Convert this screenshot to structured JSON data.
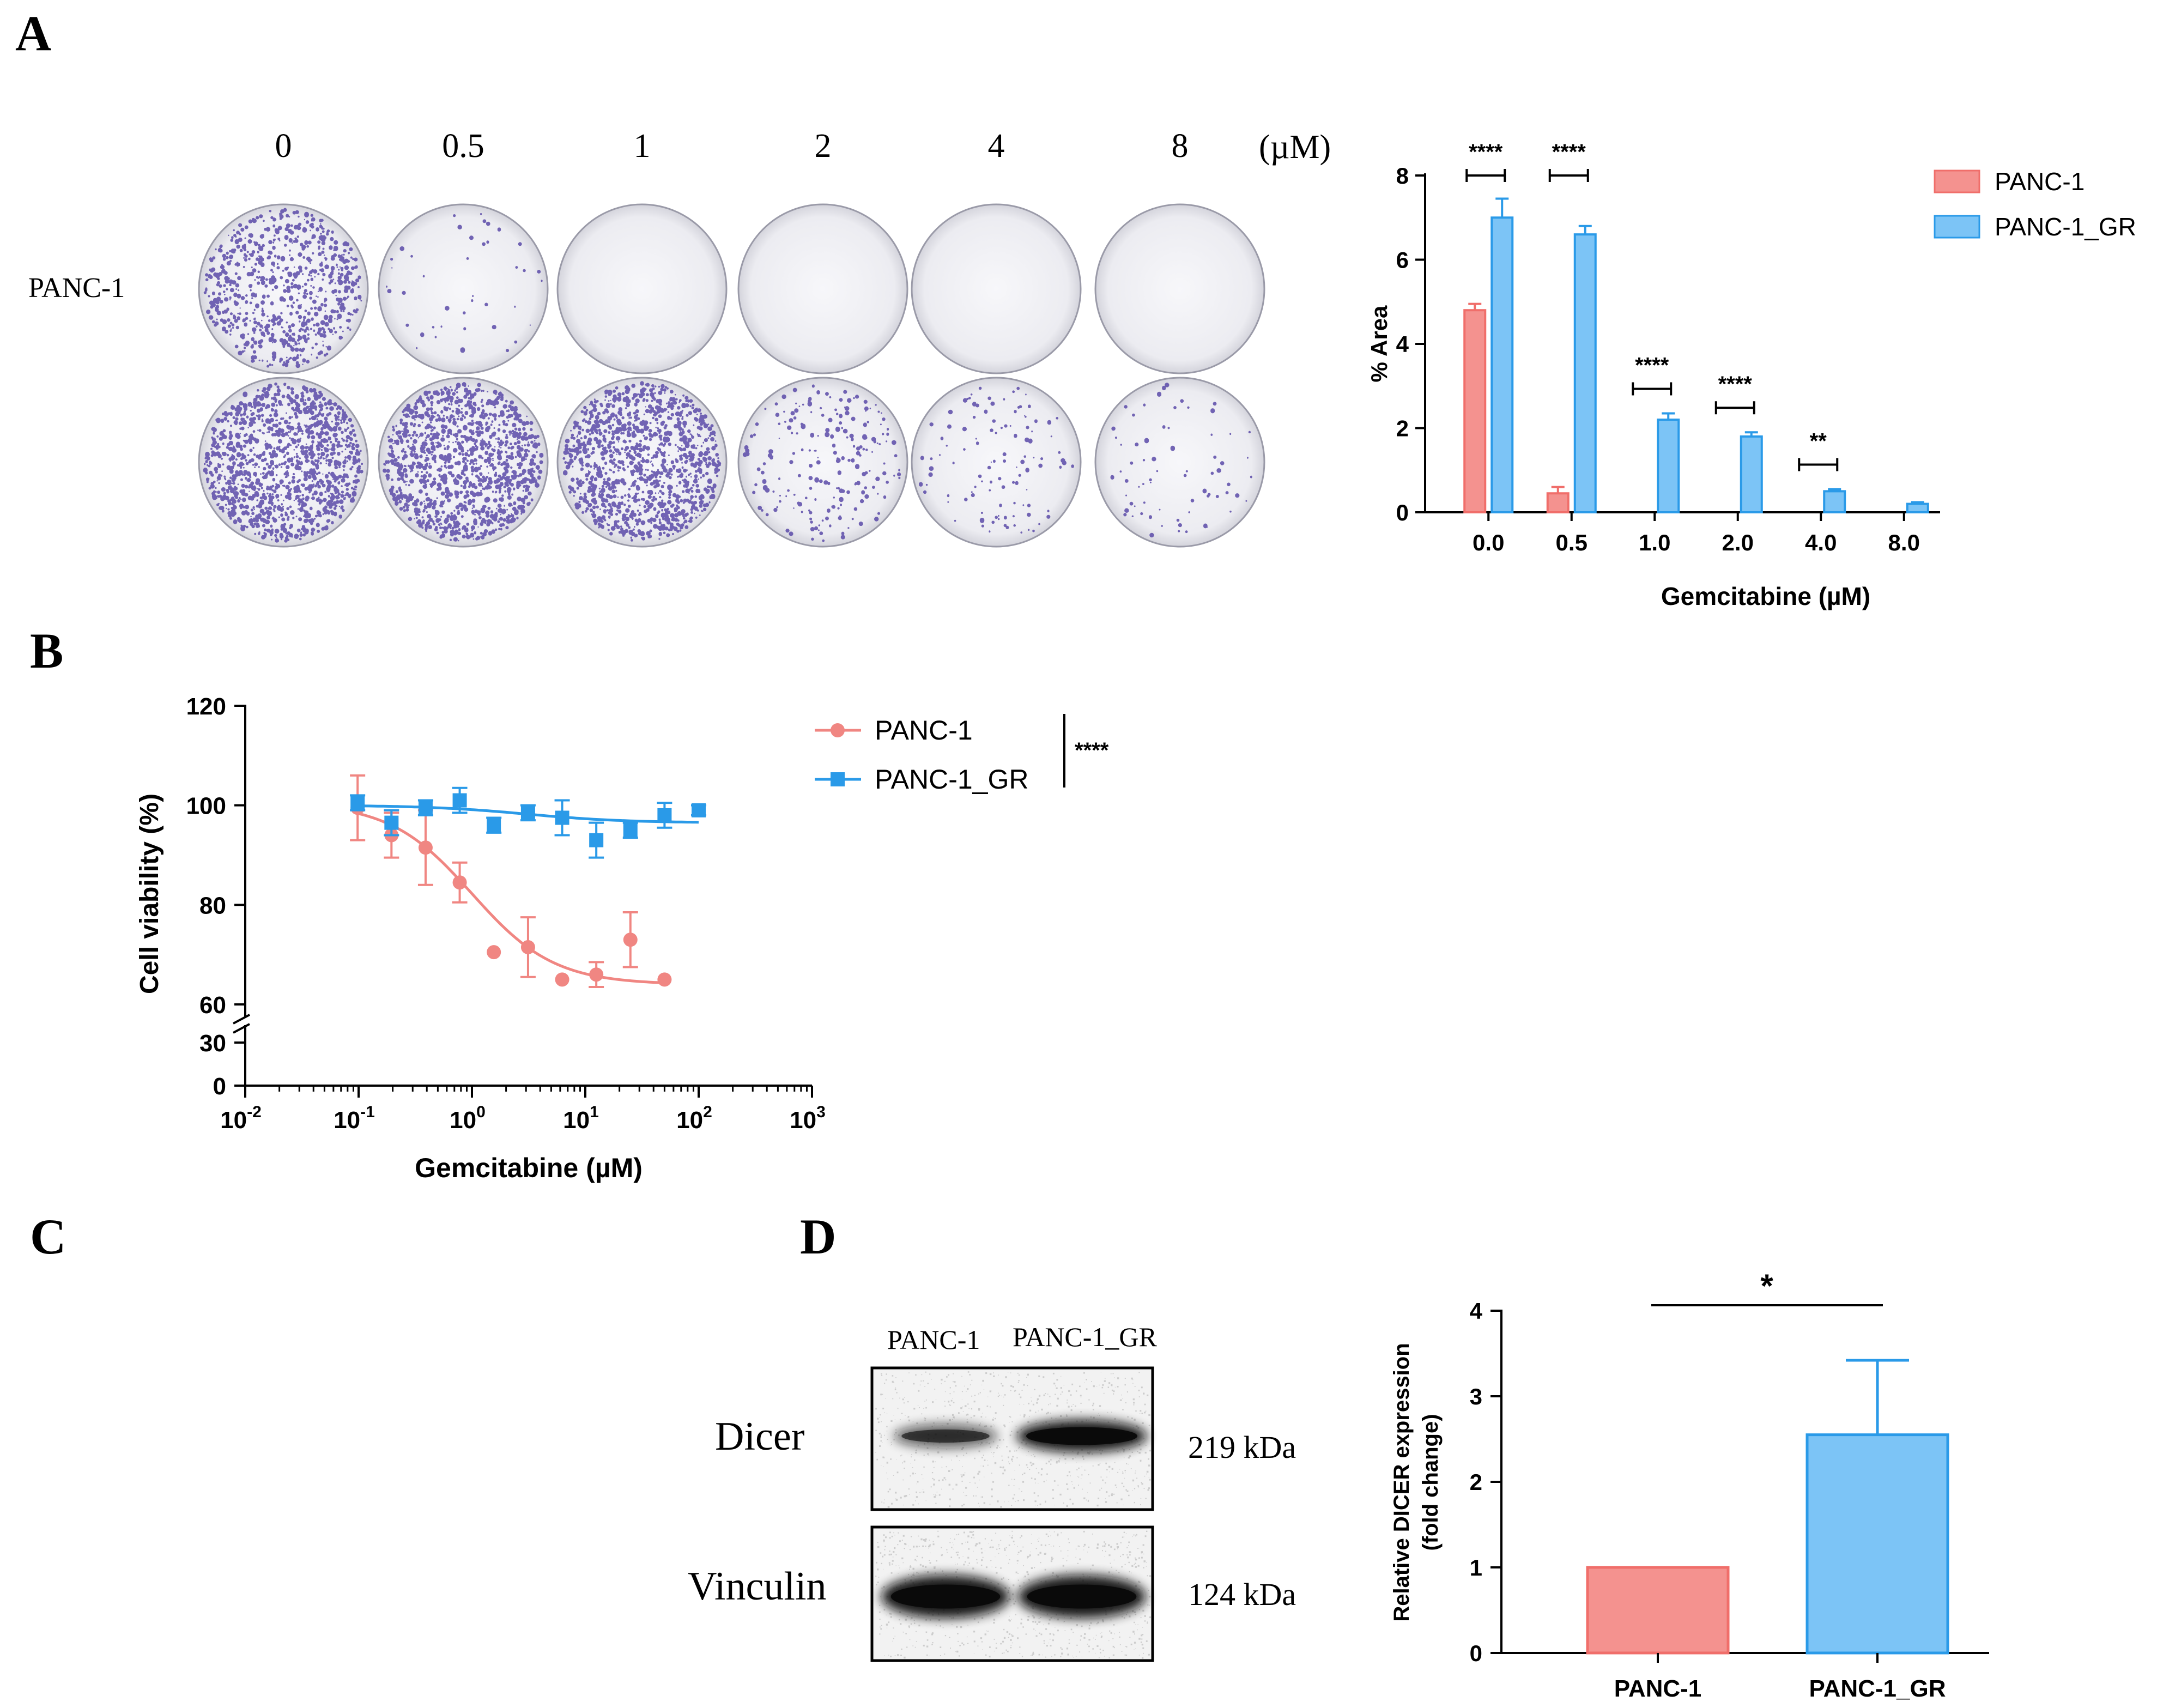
{
  "panels": {
    "A": "A",
    "B": "B",
    "C": "C",
    "D": "D"
  },
  "colony_assay": {
    "concentrations": [
      "0",
      "0.5",
      "1",
      "2",
      "4",
      "8"
    ],
    "unit": "(µM)",
    "row_label": "PANC-1",
    "colony_density": {
      "row1": [
        0.55,
        0.03,
        0.0,
        0.0,
        0.0,
        0.0
      ],
      "row2": [
        0.95,
        0.9,
        0.9,
        0.15,
        0.08,
        0.05
      ]
    },
    "plate_colors": {
      "colony": "#5b4aa8",
      "plate_fill": "#eeeef2",
      "plate_edge": "#9a9aa8"
    }
  },
  "western_blot": {
    "lane_labels": [
      "PANC-1",
      "PANC-1_GR"
    ],
    "bands": [
      {
        "name": "Dicer",
        "size": "219 kDa",
        "intensity": [
          0.55,
          1.0
        ]
      },
      {
        "name": "Vinculin",
        "size": "124 kDa",
        "intensity": [
          1.0,
          1.0
        ]
      }
    ]
  },
  "colors": {
    "panc1": "#f4928f",
    "panc1_edge": "#f06e6a",
    "panc1gr": "#7cc4f6",
    "panc1gr_edge": "#2a9ae8",
    "axis": "#000000"
  },
  "chart_data": [
    {
      "id": "A-bar",
      "type": "bar",
      "title": "",
      "xlabel": "Gemcitabine (µM)",
      "ylabel": "% Area",
      "categories": [
        "0.0",
        "0.5",
        "1.0",
        "2.0",
        "4.0",
        "8.0"
      ],
      "ylim": [
        0,
        8
      ],
      "yticks": [
        "0",
        "2",
        "4",
        "6",
        "8"
      ],
      "legend": [
        "PANC-1",
        "PANC-1_GR"
      ],
      "legend_position": "top-right",
      "series": [
        {
          "name": "PANC-1",
          "values": [
            4.8,
            0.45,
            0,
            0,
            0,
            0
          ],
          "errors": [
            0.15,
            0.15,
            0,
            0,
            0,
            0
          ]
        },
        {
          "name": "PANC-1_GR",
          "values": [
            7.0,
            6.6,
            2.2,
            1.8,
            0.5,
            0.2
          ],
          "errors": [
            0.45,
            0.2,
            0.15,
            0.1,
            0.05,
            0.04
          ]
        }
      ],
      "significance": [
        "****",
        "****",
        "****",
        "****",
        "**",
        ""
      ]
    },
    {
      "id": "B-curve",
      "type": "scatter",
      "title": "",
      "xlabel": "Gemcitabine (µM)",
      "ylabel": "Cell viability (%)",
      "xscale": "log",
      "xlim": [
        0.01,
        1000
      ],
      "xticks": [
        {
          "base": "10",
          "exp": "-2"
        },
        {
          "base": "10",
          "exp": "-1"
        },
        {
          "base": "10",
          "exp": "0"
        },
        {
          "base": "10",
          "exp": "1"
        },
        {
          "base": "10",
          "exp": "2"
        },
        {
          "base": "10",
          "exp": "3"
        }
      ],
      "yticks_upper": [
        "60",
        "80",
        "100",
        "120"
      ],
      "yticks_lower": [
        "0",
        "30"
      ],
      "ylim_upper": [
        60,
        120
      ],
      "ylim_lower": [
        0,
        30
      ],
      "legend": [
        "PANC-1",
        "PANC-1_GR"
      ],
      "legend_position": "top-right",
      "significance": "****",
      "series": [
        {
          "name": "PANC-1",
          "x": [
            0.098,
            0.195,
            0.39,
            0.78,
            1.56,
            3.125,
            6.25,
            12.5,
            25,
            50
          ],
          "y": [
            99.5,
            94,
            91.5,
            84.5,
            70.5,
            71.5,
            65,
            66,
            73,
            65
          ],
          "err": [
            6.5,
            4.5,
            7.5,
            4,
            0,
            6,
            0,
            2.5,
            5.5,
            0
          ],
          "fit": {
            "top": 100.5,
            "bottom": 64,
            "ec50": 1.0,
            "hill": 1.2
          }
        },
        {
          "name": "PANC-1_GR",
          "x": [
            0.098,
            0.195,
            0.39,
            0.78,
            1.56,
            3.125,
            6.25,
            12.5,
            25,
            50,
            100
          ],
          "y": [
            100.5,
            96.5,
            99.5,
            101,
            96,
            98.5,
            97.5,
            93,
            95,
            98,
            99
          ],
          "err": [
            1.5,
            2.5,
            1.5,
            2.5,
            1.5,
            1.5,
            3.5,
            3.5,
            1.5,
            2.5,
            1
          ],
          "fit": {
            "top": 100,
            "bottom": 96.5,
            "ec50": 3.0,
            "hill": 1.0
          }
        }
      ]
    },
    {
      "id": "D-bar",
      "type": "bar",
      "title": "",
      "xlabel": "",
      "ylabel_lines": [
        "Relative DICER expression",
        "(fold change)"
      ],
      "categories": [
        "PANC-1",
        "PANC-1_GR"
      ],
      "values": [
        1.0,
        2.55
      ],
      "errors": [
        0,
        0.87
      ],
      "ylim": [
        0,
        4
      ],
      "yticks": [
        "0",
        "1",
        "2",
        "3",
        "4"
      ],
      "significance": "*"
    }
  ]
}
